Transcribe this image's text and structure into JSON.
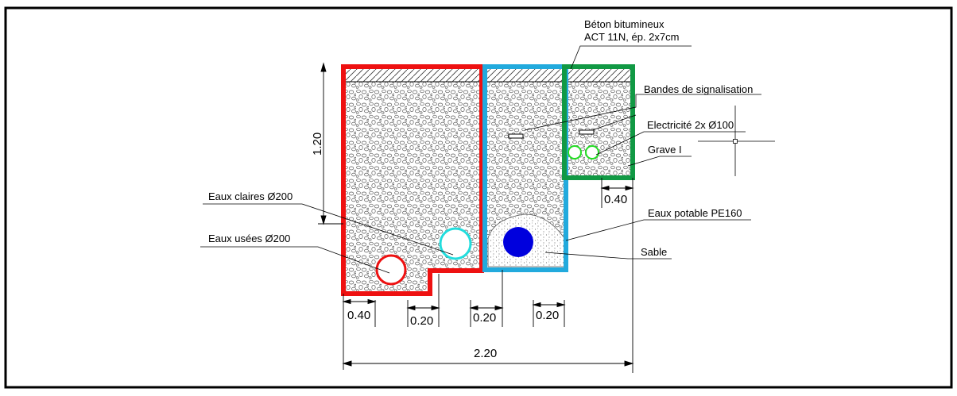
{
  "labels": {
    "asphalt_line1": "Béton bitumineux",
    "asphalt_line2": "ACT 11N, ép. 2x7cm",
    "warning_bands": "Bandes de signalisation",
    "electricity": "Electricité 2x Ø100",
    "gravel": "Grave I",
    "clear_water": "Eaux claires Ø200",
    "potable_water": "Eaux potable PE160",
    "waste_water": "Eaux usées Ø200",
    "sand": "Sable"
  },
  "dimensions": {
    "depth": "1.20",
    "elec_width": "0.40",
    "left_width": "0.40",
    "step_width": "0.20",
    "gap_width": "0.20",
    "pipe_offset": "0.20",
    "total_width": "2.20"
  },
  "colors": {
    "waste_trench": "#ee1111",
    "potable_trench": "#22aadd",
    "elec_trench": "#119944",
    "waste_pipe": "#ee1111",
    "clear_pipe": "#22dddd",
    "potable_pipe": "#0000dd",
    "elec_pipe": "#22dd22"
  }
}
